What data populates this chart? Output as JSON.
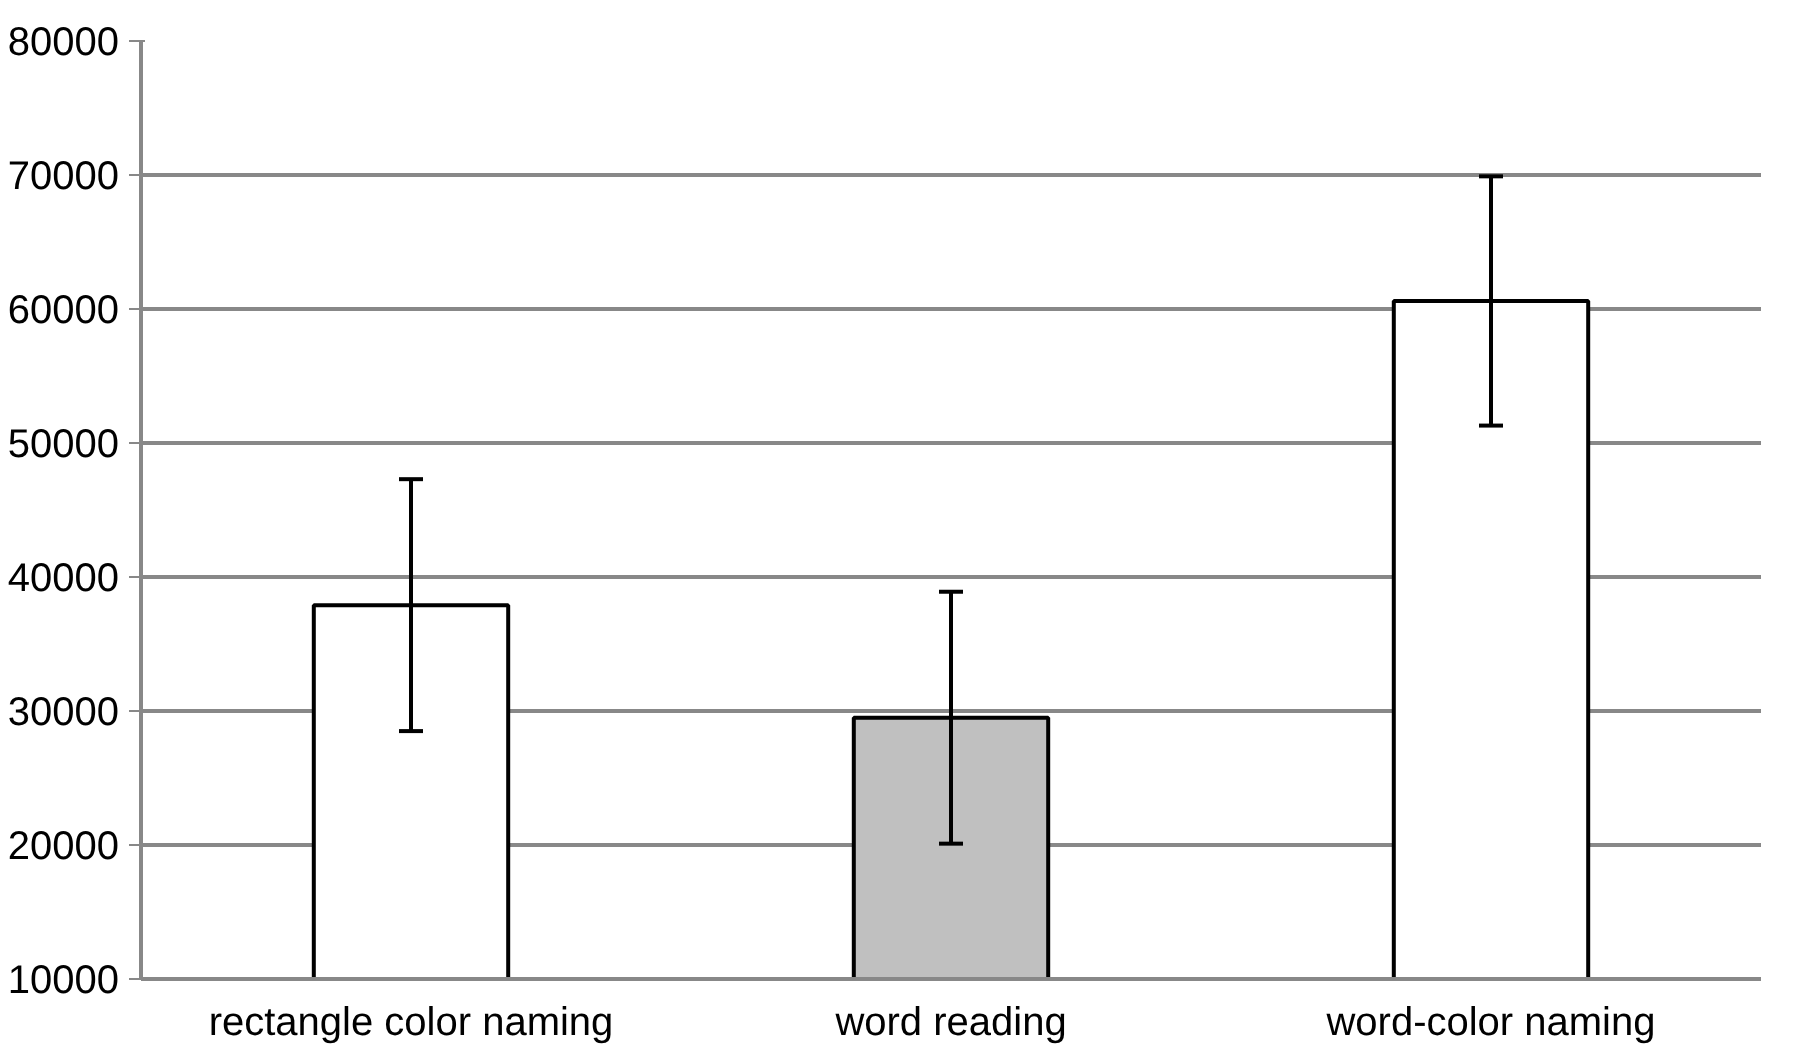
{
  "chart_data": {
    "type": "bar",
    "categories": [
      "rectangle color naming",
      "word reading",
      "word-color naming"
    ],
    "values": [
      37900,
      29500,
      60600
    ],
    "colors": [
      "#ffffff",
      "#c0c0c0",
      "#ffffff"
    ],
    "errors": [
      9400,
      9400,
      9300
    ],
    "ylim": [
      10000,
      80000
    ],
    "yticks": [
      10000,
      20000,
      30000,
      40000,
      50000,
      60000,
      70000,
      80000
    ],
    "grid": "y"
  }
}
